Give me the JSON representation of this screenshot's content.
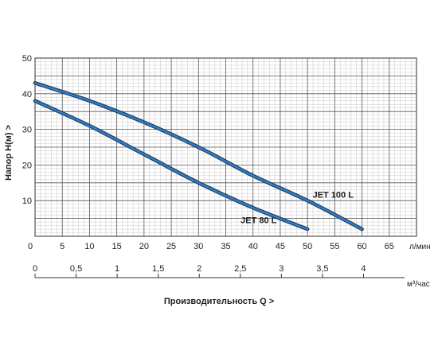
{
  "chart_data": {
    "type": "line",
    "ylabel": "Напор  H(м)  >",
    "xlabel_bottom": "Производительность Q  >",
    "x_unit": "л/мин",
    "x2_unit": "м³/час",
    "xlim": [
      0,
      70
    ],
    "ylim": [
      0,
      50
    ],
    "x_ticks": [
      0,
      5,
      10,
      15,
      20,
      25,
      30,
      35,
      40,
      45,
      50,
      55,
      60,
      65
    ],
    "y_ticks": [
      10,
      20,
      30,
      40,
      50
    ],
    "x2_ticks": [
      "0",
      "0,5",
      "1",
      "1,5",
      "2",
      "2,5",
      "3",
      "3,5",
      "4"
    ],
    "x2_lim": [
      0,
      4.5
    ],
    "grid": true,
    "series": [
      {
        "name": "JET 100 L",
        "color": "#2f7fc4",
        "x": [
          0,
          10,
          20,
          30,
          40,
          50,
          60
        ],
        "y": [
          43,
          38,
          32,
          25,
          17,
          10,
          2
        ]
      },
      {
        "name": "JET 80 L",
        "color": "#2f7fc4",
        "x": [
          0,
          10,
          20,
          30,
          40,
          50
        ],
        "y": [
          38,
          31,
          23,
          15,
          8,
          2
        ]
      }
    ]
  }
}
